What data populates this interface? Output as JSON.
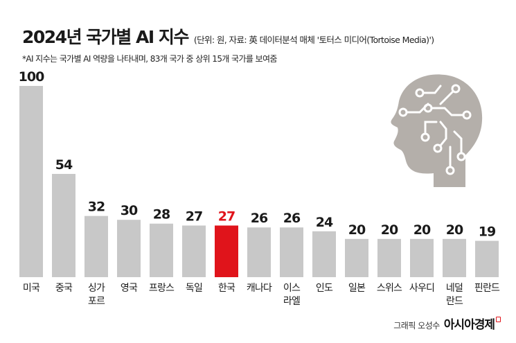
{
  "title": "2024년 국가별 AI 지수",
  "unit_note": "(단위: 원, 자료: 英 데이터분석 매체 '토터스 미디어(Tortoise Media)')",
  "subtitle": "*AI 지수는 국가별 AI 역량을 나타내며, 83개 국가 중 상위 15개 국가를 보여줌",
  "footer": {
    "credit": "그래픽 오성수",
    "brand": "아시아경제"
  },
  "colors": {
    "bar": "#c8c8c8",
    "highlight": "#e0141b",
    "text": "#1a1a1a",
    "illustration": "#b4afaa"
  },
  "icons": {
    "illustration": "ai-head-icon"
  },
  "chart_data": {
    "type": "bar",
    "title": "2024년 국가별 AI 지수",
    "xlabel": "",
    "ylabel": "",
    "ylim": [
      0,
      100
    ],
    "grid": false,
    "categories": [
      "미국",
      "중국",
      "싱가\n포르",
      "영국",
      "프랑스",
      "독일",
      "한국",
      "캐나다",
      "이스\n라엘",
      "인도",
      "일본",
      "스위스",
      "사우디",
      "네덜\n란드",
      "핀란드"
    ],
    "values": [
      100,
      54,
      32,
      30,
      28,
      27,
      27,
      26,
      26,
      24,
      20,
      20,
      20,
      20,
      19
    ],
    "highlight": "한국"
  }
}
